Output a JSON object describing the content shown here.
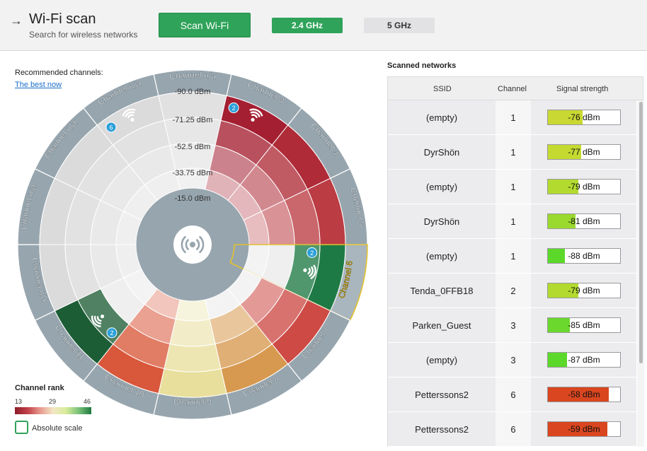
{
  "header": {
    "title": "Wi-Fi scan",
    "subtitle": "Search for wireless networks",
    "scan_label": "Scan Wi-Fi",
    "band_24_label": "2.4 GHz",
    "band_5_label": "5 GHz"
  },
  "recommend": {
    "label": "Recommended channels:",
    "link": "The best now"
  },
  "wheel": {
    "dbm_labels": [
      "-90.0 dBm",
      "-71.25 dBm",
      "-52.5 dBm",
      "-33.75 dBm",
      "-15.0 dBm"
    ],
    "segments": [
      {
        "label": "Channel n/a",
        "color": "#e3e3e4",
        "rings": 0
      },
      {
        "label": "Channel 3",
        "color": "#a41f31",
        "rings": 4,
        "wifi": true,
        "badge": "2"
      },
      {
        "label": "Channel 4",
        "color": "#ae2b37",
        "rings": 4
      },
      {
        "label": "Channel 5",
        "color": "#bb3c43",
        "rings": 4
      },
      {
        "label": "Channel 6",
        "color": "#1e7a45",
        "rings": 2,
        "wifi": true,
        "badge": "2",
        "selected": true
      },
      {
        "label": "Channel 7",
        "color": "#cd4a45",
        "rings": 3
      },
      {
        "label": "Channel 8",
        "color": "#d7994f",
        "rings": 3
      },
      {
        "label": "Channel 9",
        "color": "#e8df9c",
        "rings": 4
      },
      {
        "label": "Channel 10",
        "color": "#d9573a",
        "rings": 4
      },
      {
        "label": "Channel 11",
        "color": "#1d5d36",
        "rings": 2,
        "wifi": true,
        "badge": "2"
      },
      {
        "label": "Channel n/a",
        "color": "#dcdcdd",
        "rings": 0
      },
      {
        "label": "Channel n/a",
        "color": "#dcdcdd",
        "rings": 0
      },
      {
        "label": "Channel n/a",
        "color": "#dcdcdd",
        "rings": 0
      },
      {
        "label": "Channel n/a",
        "color": "#dcdcdd",
        "rings": 0,
        "wifi": true,
        "badge": "6"
      }
    ]
  },
  "rank": {
    "title": "Channel rank",
    "min": "13",
    "mid": "29",
    "max": "46",
    "absolute_label": "Absolute scale"
  },
  "table": {
    "title": "Scanned networks",
    "columns": [
      "SSID",
      "Channel",
      "Signal strength"
    ],
    "rows": [
      {
        "ssid": "(empty)",
        "channel": "1",
        "signal": "-76 dBm",
        "level": 0.48,
        "color": "#c9d832"
      },
      {
        "ssid": "DyrShön",
        "channel": "1",
        "signal": "-77 dBm",
        "level": 0.46,
        "color": "#c4da30"
      },
      {
        "ssid": "(empty)",
        "channel": "1",
        "signal": "-79 dBm",
        "level": 0.42,
        "color": "#b3da2f"
      },
      {
        "ssid": "DyrShön",
        "channel": "1",
        "signal": "-81 dBm",
        "level": 0.38,
        "color": "#9ad92e"
      },
      {
        "ssid": "(empty)",
        "channel": "1",
        "signal": "-88 dBm",
        "level": 0.24,
        "color": "#5cd82a"
      },
      {
        "ssid": "Tenda_0FFB18",
        "channel": "2",
        "signal": "-79 dBm",
        "level": 0.42,
        "color": "#b3da2f"
      },
      {
        "ssid": "Parken_Guest",
        "channel": "3",
        "signal": "-85 dBm",
        "level": 0.3,
        "color": "#6ad82c"
      },
      {
        "ssid": "(empty)",
        "channel": "3",
        "signal": "-87 dBm",
        "level": 0.26,
        "color": "#5cd82a"
      },
      {
        "ssid": "Petterssons2",
        "channel": "6",
        "signal": "-58 dBm",
        "level": 0.84,
        "color": "#d9461f"
      },
      {
        "ssid": "Petterssons2",
        "channel": "6",
        "signal": "-59 dBm",
        "level": 0.82,
        "color": "#d9461f"
      }
    ]
  }
}
